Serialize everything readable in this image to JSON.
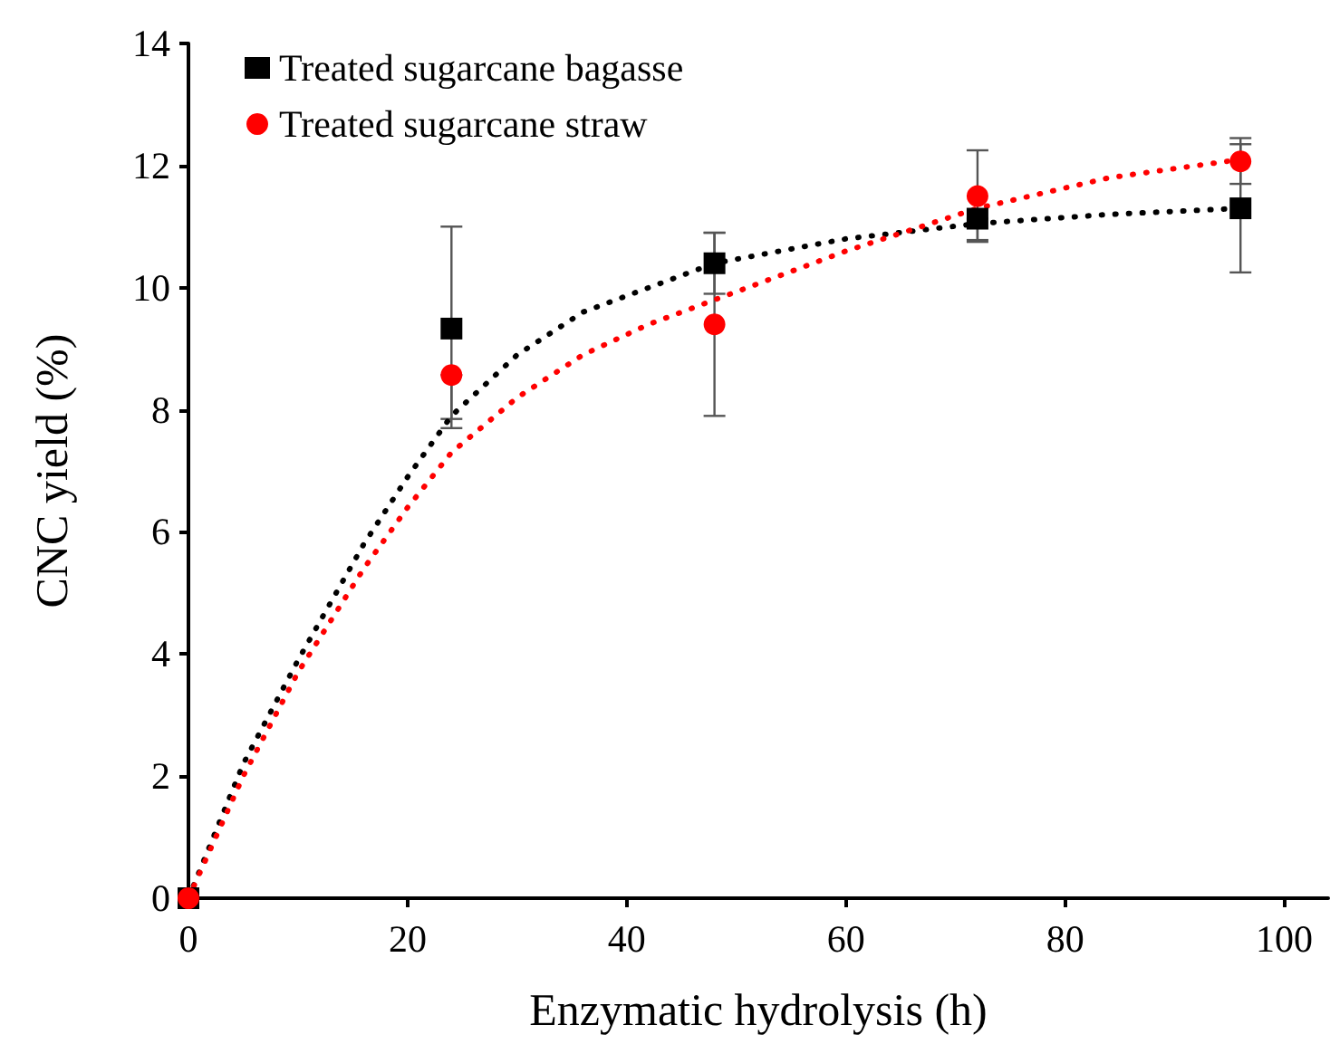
{
  "chart_data": {
    "type": "scatter",
    "xlabel": "Enzymatic hydrolysis (h)",
    "ylabel": "CNC yield (%)",
    "xlim": [
      0,
      104
    ],
    "xticks": [
      0,
      20,
      40,
      60,
      80,
      100
    ],
    "ylim": [
      0,
      14
    ],
    "yticks": [
      0,
      2,
      4,
      6,
      8,
      10,
      12,
      14
    ],
    "grid": false,
    "legend": "top left",
    "series": [
      {
        "name": "Treated sugarcane bagasse",
        "color": "#000000",
        "marker": "square",
        "x": [
          0,
          24,
          48,
          72,
          96
        ],
        "values": [
          0,
          9.33,
          10.4,
          11.13,
          11.3
        ],
        "errors": [
          null,
          [
            7.7,
            11.0
          ],
          [
            9.9,
            10.9
          ],
          [
            10.78,
            11.13
          ],
          [
            10.25,
            12.35
          ]
        ]
      },
      {
        "name": "Treated sugarcane straw",
        "color": "#ff0000",
        "marker": "circle",
        "x": [
          0,
          24,
          48,
          72,
          96
        ],
        "values": [
          0,
          8.57,
          9.4,
          11.5,
          12.07
        ],
        "errors": [
          null,
          [
            7.85,
            8.57
          ],
          [
            7.9,
            10.9
          ],
          [
            10.75,
            12.25
          ],
          [
            11.7,
            12.45
          ]
        ]
      },
      {
        "type": "line",
        "color": "#000000",
        "line_style": "dotted",
        "marker": "none",
        "x": [
          0,
          5,
          10,
          16,
          20,
          24,
          30,
          36,
          42,
          48,
          60,
          72,
          84,
          96
        ],
        "values": [
          0,
          2.2,
          3.9,
          5.8,
          6.9,
          7.9,
          8.9,
          9.6,
          10.0,
          10.4,
          10.8,
          11.05,
          11.2,
          11.3
        ]
      },
      {
        "type": "line",
        "color": "#ff0000",
        "line_style": "dotted",
        "marker": "none",
        "x": [
          0,
          5,
          10,
          16,
          20,
          24,
          30,
          36,
          42,
          48,
          60,
          72,
          84,
          96
        ],
        "values": [
          0,
          2.0,
          3.7,
          5.4,
          6.4,
          7.3,
          8.2,
          8.9,
          9.4,
          9.8,
          10.6,
          11.3,
          11.8,
          12.1
        ]
      }
    ]
  }
}
